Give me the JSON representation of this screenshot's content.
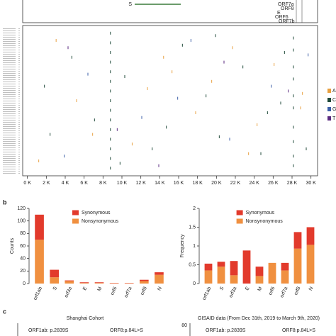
{
  "genome_labels": [
    "S",
    "ORF7a",
    "ORF8",
    "E",
    "ORF6",
    "ORF7b"
  ],
  "panel_letters": [
    "b",
    "c"
  ],
  "panel_c": {
    "left_title": "Shanghai Cohort",
    "right_title": "GISAID data (From Dec 31th, 2019 to March 9th, 2020)",
    "left_labels": [
      "ORF1ab: p.2839S",
      "ORF8:p.84L>S"
    ],
    "right_labels": [
      "ORF1ab: p.2839S",
      "ORF8:p.84L>S"
    ],
    "right_tick": "80"
  },
  "chart_data": [
    {
      "type": "scatter",
      "xlim": [
        -500,
        30700
      ],
      "ylim": [
        0,
        60
      ],
      "xticks": [
        {
          "value": 0,
          "label": "0 K"
        },
        {
          "value": 2000,
          "label": "2 K"
        },
        {
          "value": 4000,
          "label": "4 K"
        },
        {
          "value": 6000,
          "label": "6 K"
        },
        {
          "value": 8000,
          "label": "8 K"
        },
        {
          "value": 10000,
          "label": "10 K"
        },
        {
          "value": 12000,
          "label": "12 K"
        },
        {
          "value": 14000,
          "label": "14 K"
        },
        {
          "value": 16000,
          "label": "16 K"
        },
        {
          "value": 18000,
          "label": "18 K"
        },
        {
          "value": 20000,
          "label": "20 K"
        },
        {
          "value": 22000,
          "label": "22 K"
        },
        {
          "value": 24000,
          "label": "24 K"
        },
        {
          "value": 26000,
          "label": "26 K"
        },
        {
          "value": 28000,
          "label": "28 K"
        },
        {
          "value": 30000,
          "label": "30 K"
        }
      ],
      "series": [
        {
          "name": "A",
          "color": "#e8a040",
          "x": [
            3037,
            11083,
            14408,
            5200,
            19500,
            24300,
            21700,
            1200,
            26100,
            17800,
            29100,
            6900,
            15300,
            23400,
            28900,
            12700
          ],
          "y": [
            5,
            48,
            12,
            30,
            22,
            40,
            8,
            55,
            15,
            35,
            27,
            44,
            18,
            52,
            33,
            25
          ]
        },
        {
          "name": "C",
          "color": "#1f4a3a",
          "x": [
            8782,
            8782,
            8782,
            8782,
            8782,
            8782,
            8782,
            8782,
            8782,
            8782,
            8782,
            8782,
            8782,
            8782,
            8782,
            28144,
            28144,
            28144,
            28144,
            28144,
            28144,
            28144,
            28144,
            28144,
            28144,
            2400,
            4700,
            7100,
            10300,
            13200,
            16400,
            18900,
            20300,
            22800,
            25400,
            27200,
            29500,
            1800,
            9800,
            14700,
            19900,
            24700,
            26800
          ],
          "y": [
            2,
            6,
            10,
            14,
            18,
            22,
            26,
            30,
            34,
            38,
            42,
            46,
            50,
            54,
            58,
            4,
            9,
            16,
            21,
            28,
            33,
            41,
            47,
            53,
            57,
            44,
            12,
            38,
            20,
            50,
            7,
            28,
            45,
            16,
            35,
            10,
            50,
            24,
            56,
            41,
            3,
            52,
            31
          ]
        },
        {
          "name": "G",
          "color": "#3d5fa8",
          "x": [
            6400,
            12100,
            17300,
            21400,
            25800,
            29700,
            3900,
            15900
          ],
          "y": [
            19,
            37,
            5,
            46,
            24,
            11,
            53,
            29
          ]
        },
        {
          "name": "T",
          "color": "#5a2a80",
          "x": [
            9500,
            20800,
            27600,
            13900,
            4300
          ],
          "y": [
            42,
            14,
            26,
            57,
            8
          ]
        }
      ]
    },
    {
      "type": "stacked_bar",
      "ylabel": "Counts",
      "ylim": [
        0,
        120
      ],
      "yticks": [
        0,
        20,
        40,
        60,
        80,
        100,
        120
      ],
      "categories": [
        "orf1ab",
        "S",
        "orf3a",
        "E",
        "M",
        "orf6",
        "orf7a",
        "orf8",
        "N"
      ],
      "series": [
        {
          "name": "Nonsynonymous",
          "color": "#f09040",
          "values": [
            70,
            10,
            4,
            1,
            1,
            0.5,
            0.5,
            4,
            14
          ]
        },
        {
          "name": "Synonymous",
          "color": "#e23a2c",
          "values": [
            40,
            12,
            1,
            1,
            1,
            0.5,
            0.5,
            2,
            4
          ]
        }
      ]
    },
    {
      "type": "stacked_bar",
      "ylabel": "Frequency",
      "ylim": [
        0,
        2
      ],
      "yticks": [
        0,
        0.5,
        1,
        1.5,
        2
      ],
      "categories": [
        "orf1ab",
        "S",
        "orf3a",
        "E",
        "M",
        "orf6",
        "orf7a",
        "orf8",
        "N"
      ],
      "series": [
        {
          "name": "Nonsynonymous",
          "color": "#f09040",
          "values": [
            0.35,
            0.45,
            0.22,
            0,
            0.2,
            0.55,
            0.35,
            0.93,
            1.03
          ]
        },
        {
          "name": "Synonymous",
          "color": "#e23a2c",
          "values": [
            0.18,
            0.13,
            0.38,
            0.88,
            0.25,
            0,
            0.2,
            0.44,
            0.47
          ]
        }
      ]
    }
  ]
}
